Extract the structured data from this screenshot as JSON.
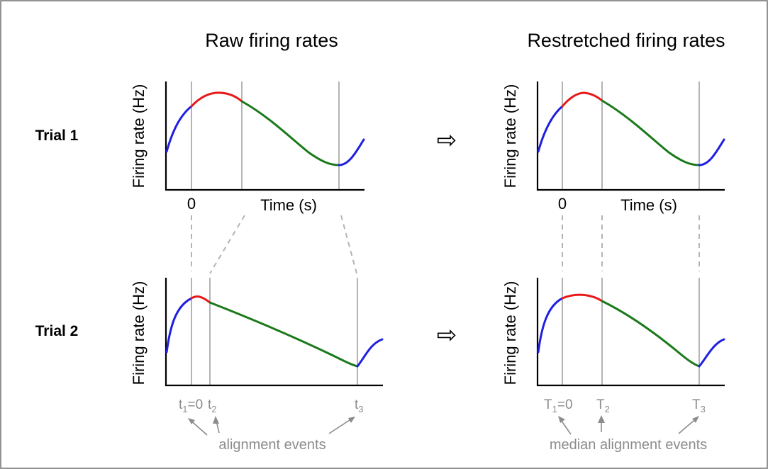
{
  "titles": {
    "left": "Raw firing rates",
    "right": "Restretched firing rates"
  },
  "trials": {
    "trial1": "Trial 1",
    "trial2": "Trial 2"
  },
  "axes": {
    "ylabel": "Firing rate (Hz)",
    "xlabel": "Time (s)",
    "zero": "0"
  },
  "raw_events": {
    "t1": "t",
    "t1_sub": "1",
    "t1_suffix": "=0",
    "t2": "t",
    "t2_sub": "2",
    "t3": "t",
    "t3_sub": "3"
  },
  "median_events": {
    "T1": "T",
    "T1_sub": "1",
    "T1_suffix": "=0",
    "T2": "T",
    "T2_sub": "2",
    "T3": "T",
    "T3_sub": "3"
  },
  "notes": {
    "left": "alignment events",
    "right": "median alignment events"
  },
  "arrow_glyph": "⇨",
  "colors": {
    "segment_start": "#1f1fe0",
    "segment_middle": "#e81818",
    "segment_long": "#1a7a1a",
    "segment_end": "#1f1fe0",
    "event_line": "#b4b4b4",
    "label_gray": "#8c8c8c"
  }
}
